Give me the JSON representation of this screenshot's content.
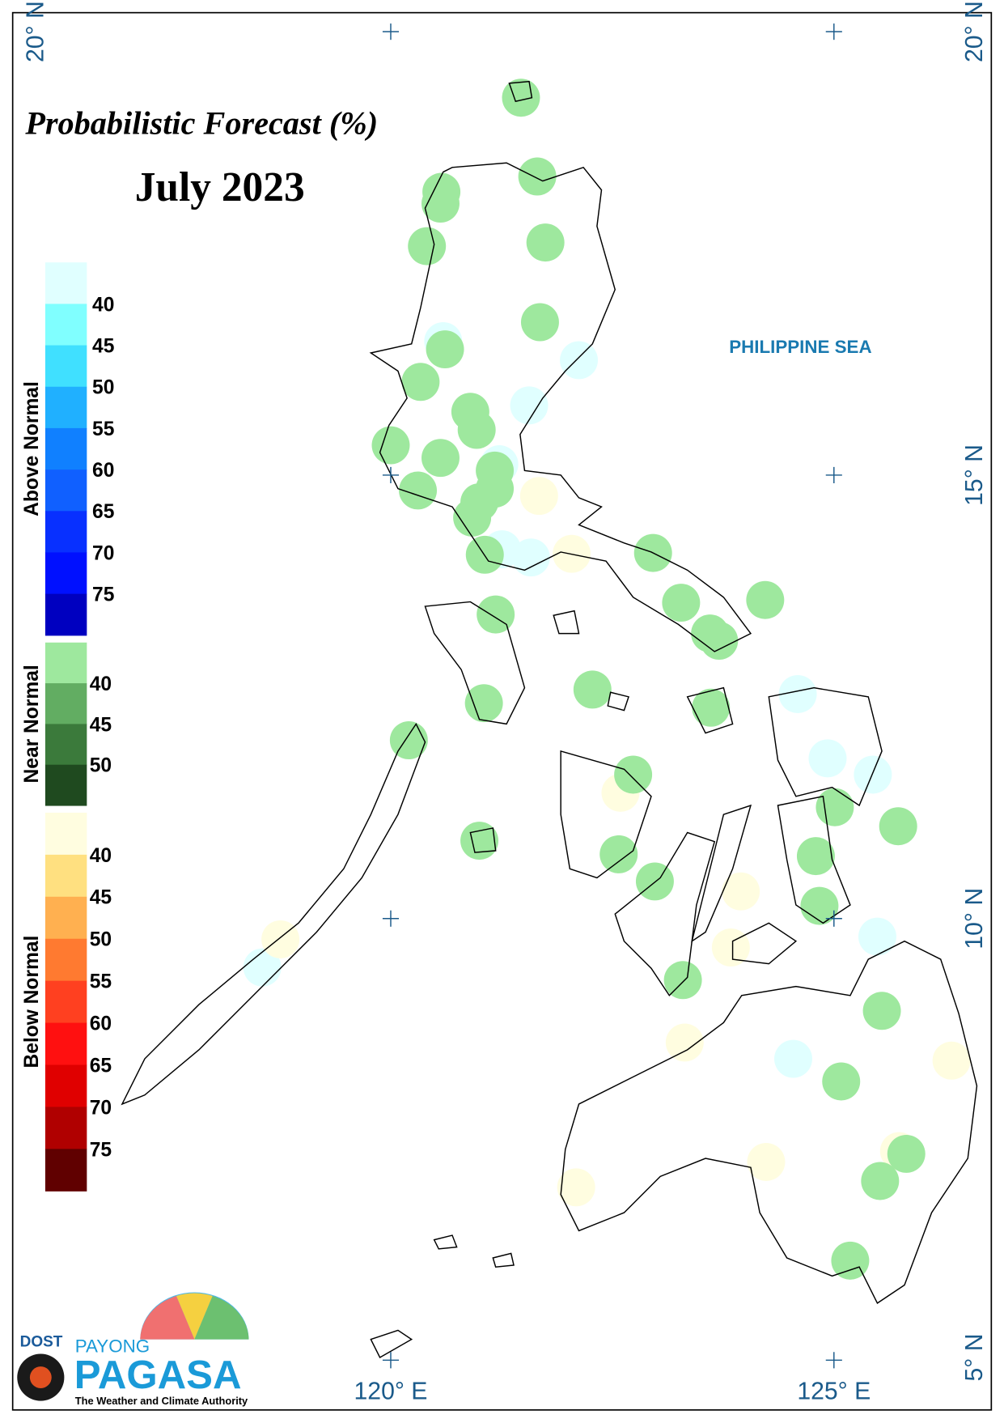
{
  "header": {
    "title": "Probabilistic Forecast (%)",
    "period": "July 2023"
  },
  "legend": {
    "sections": [
      {
        "name": "Above Normal",
        "labels": [
          40,
          45,
          50,
          55,
          60,
          65,
          70,
          75
        ],
        "colors": [
          "#e0ffff",
          "#80ffff",
          "#40e0ff",
          "#20b0ff",
          "#1080ff",
          "#1060ff",
          "#0830ff",
          "#0010ff",
          "#0000c0"
        ]
      },
      {
        "name": "Near Normal",
        "labels": [
          40,
          45,
          50
        ],
        "colors": [
          "#9ee89e",
          "#62ad62",
          "#3b7a3b",
          "#1f4a1f"
        ]
      },
      {
        "name": "Below Normal",
        "labels": [
          40,
          45,
          50,
          55,
          60,
          65,
          70,
          75
        ],
        "colors": [
          "#fffde0",
          "#ffe080",
          "#ffb050",
          "#ff7a30",
          "#ff4020",
          "#ff1010",
          "#e00000",
          "#b00000",
          "#600000"
        ]
      }
    ]
  },
  "map": {
    "sea_label": "PHILIPPINE SEA",
    "lat_labels": [
      "20° N",
      "15° N",
      "10° N",
      "5° N"
    ],
    "lon_labels": [
      "120° E",
      "125° E"
    ]
  },
  "logo": {
    "agency": "DOST",
    "brand_top": "PAYONG",
    "brand": "PAGASA",
    "tagline": "The Weather and Climate Authority"
  }
}
